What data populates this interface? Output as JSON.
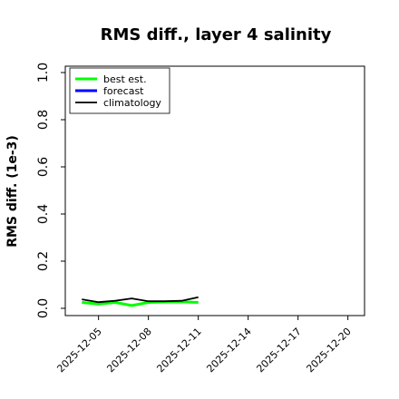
{
  "chart_data": {
    "type": "line",
    "title": "RMS diff., layer 4 salinity",
    "xlabel": "",
    "ylabel": "RMS diff. (1e-3)",
    "ylim": [
      0,
      1.0
    ],
    "yticks": [
      "0.0",
      "0.2",
      "0.4",
      "0.6",
      "0.8",
      "1.0"
    ],
    "xlim": [
      "2025-12-03",
      "2025-12-21"
    ],
    "xticks": [
      "2025-12-05",
      "2025-12-08",
      "2025-12-11",
      "2025-12-14",
      "2025-12-17",
      "2025-12-20"
    ],
    "highlighted_xtick": "2025-12-11",
    "highlight_color": "#228b22",
    "grid": false,
    "legend_position": "top-left",
    "series": [
      {
        "name": "best est.",
        "color": "#00ff00",
        "x": [
          "2025-12-04",
          "2025-12-05",
          "2025-12-06",
          "2025-12-07",
          "2025-12-08",
          "2025-12-09",
          "2025-12-10",
          "2025-12-11"
        ],
        "y": [
          0.025,
          0.018,
          0.025,
          0.012,
          0.025,
          0.027,
          0.028,
          0.025
        ]
      },
      {
        "name": "forecast",
        "color": "#0000ff",
        "x": [],
        "y": []
      },
      {
        "name": "climatology",
        "color": "#000000",
        "x": [
          "2025-12-04",
          "2025-12-05",
          "2025-12-06",
          "2025-12-07",
          "2025-12-08",
          "2025-12-09",
          "2025-12-10",
          "2025-12-11"
        ],
        "y": [
          0.038,
          0.026,
          0.032,
          0.042,
          0.03,
          0.03,
          0.032,
          0.047
        ]
      }
    ]
  }
}
